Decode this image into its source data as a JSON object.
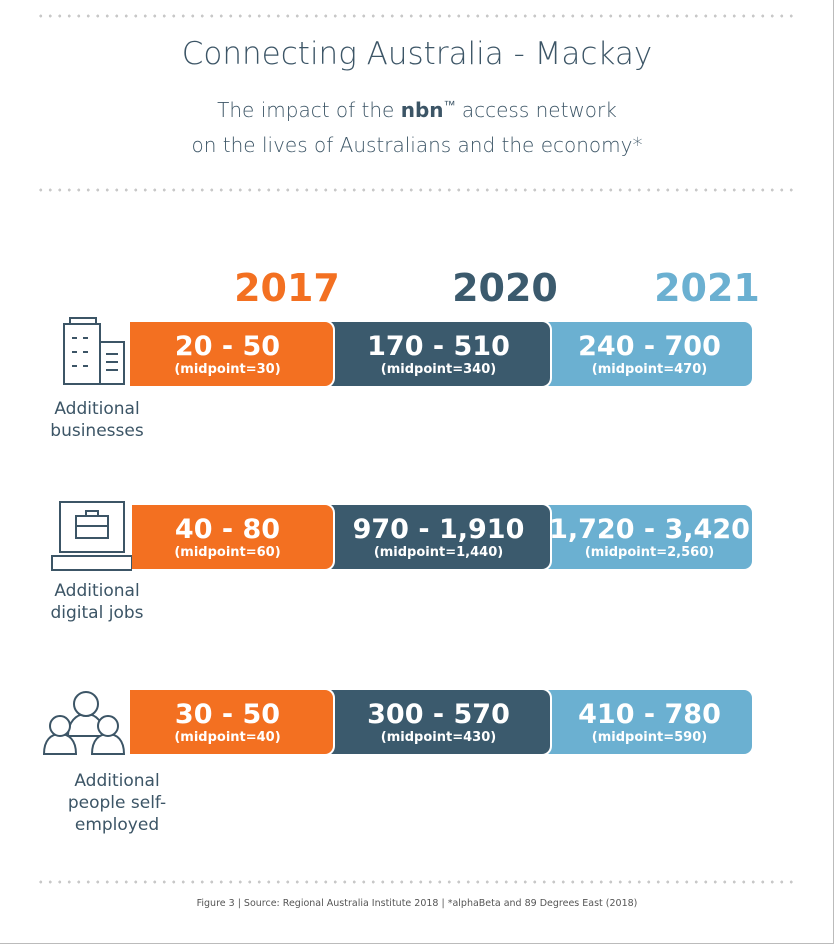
{
  "title": "Connecting Australia - Mackay",
  "subtitle_line1_pre": "The impact of the ",
  "subtitle_brand": "nbn",
  "subtitle_tm": "™",
  "subtitle_line1_post": " access network",
  "subtitle_line2": "on the lives of Australians and the economy*",
  "footnote": "Figure 3 | Source: Regional Australia Institute 2018  |  *alphaBeta and 89 Degrees East (2018)",
  "colors": {
    "2017": "#f37021",
    "2020": "#3b5a6d",
    "2021": "#6bb0d1"
  },
  "chart_data": {
    "type": "table",
    "columns": [
      "2017",
      "2020",
      "2021"
    ],
    "rows": [
      {
        "label": "Additional businesses",
        "icon": "office-building-icon",
        "cells": [
          {
            "range": "20 - 50",
            "midpoint": "(midpoint=30)"
          },
          {
            "range": "170 - 510",
            "midpoint": "(midpoint=340)"
          },
          {
            "range": "240 - 700",
            "midpoint": "(midpoint=470)"
          }
        ]
      },
      {
        "label": "Additional digital jobs",
        "icon": "laptop-briefcase-icon",
        "cells": [
          {
            "range": "40 - 80",
            "midpoint": "(midpoint=60)"
          },
          {
            "range": "970 - 1,910",
            "midpoint": "(midpoint=1,440)"
          },
          {
            "range": "1,720 - 3,420",
            "midpoint": "(midpoint=2,560)"
          }
        ]
      },
      {
        "label": "Additional people self-employed",
        "icon": "people-group-icon",
        "cells": [
          {
            "range": "30 - 50",
            "midpoint": "(midpoint=40)"
          },
          {
            "range": "300 - 570",
            "midpoint": "(midpoint=430)"
          },
          {
            "range": "410 - 780",
            "midpoint": "(midpoint=590)"
          }
        ]
      }
    ]
  }
}
